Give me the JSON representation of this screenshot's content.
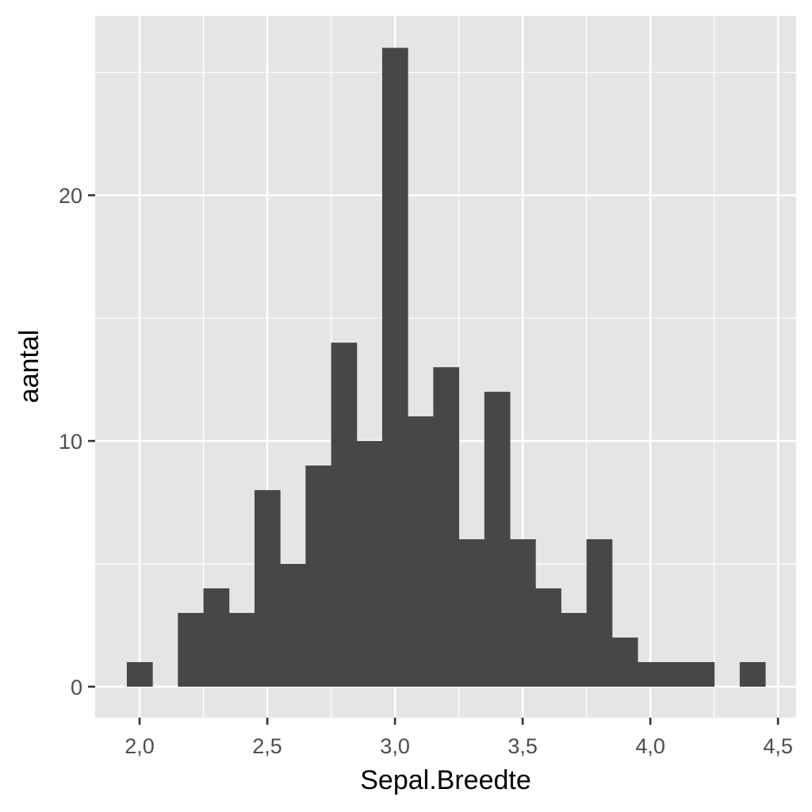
{
  "chart_data": {
    "type": "bar",
    "title": "",
    "xlabel": "Sepal.Breedte",
    "ylabel": "aantal",
    "bin_width": 0.1,
    "x": [
      2.0,
      2.1,
      2.2,
      2.3,
      2.4,
      2.5,
      2.6,
      2.7,
      2.8,
      2.9,
      3.0,
      3.1,
      3.2,
      3.3,
      3.4,
      3.5,
      3.6,
      3.7,
      3.8,
      3.9,
      4.0,
      4.1,
      4.2,
      4.3,
      4.4
    ],
    "values": [
      1,
      0,
      3,
      4,
      3,
      8,
      5,
      9,
      14,
      10,
      26,
      11,
      13,
      6,
      12,
      6,
      4,
      3,
      6,
      2,
      1,
      1,
      1,
      0,
      1
    ],
    "xlim": [
      1.826,
      4.571
    ],
    "ylim": [
      -1.26,
      27.3
    ],
    "xticks": [
      2.0,
      2.5,
      3.0,
      3.5,
      4.0,
      4.5
    ],
    "xtick_labels": [
      "2,0",
      "2,5",
      "3,0",
      "3,5",
      "4,0",
      "4,5"
    ],
    "yticks": [
      0,
      10,
      20
    ],
    "ytick_labels": [
      "0",
      "10",
      "20"
    ],
    "grid": true,
    "colors": {
      "bar": "#474747",
      "panel": "#e5e5e5",
      "grid": "#ffffff"
    }
  }
}
